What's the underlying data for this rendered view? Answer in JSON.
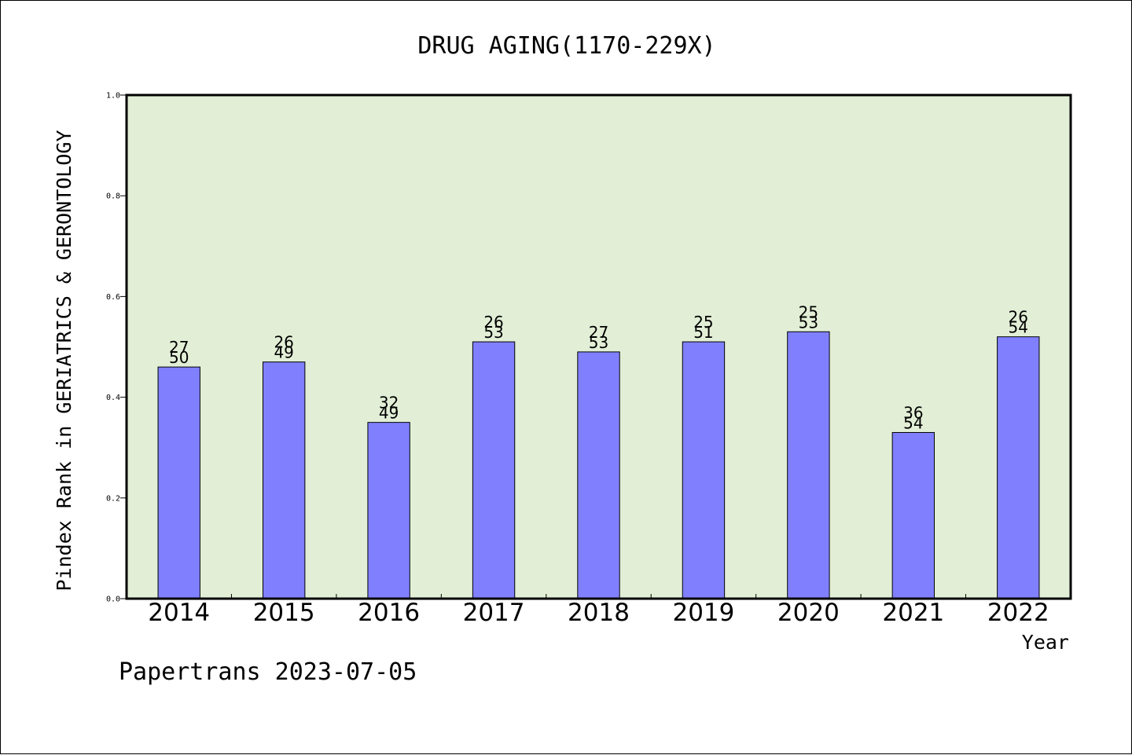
{
  "chart_data": {
    "type": "bar",
    "title": "DRUG AGING(1170-229X)",
    "xlabel": "Year",
    "ylabel": "Pindex Rank in GERIATRICS & GERONTOLOGY",
    "ylim": [
      0.0,
      1.0
    ],
    "yticks": [
      "0.0",
      "0.2",
      "0.4",
      "0.6",
      "0.8",
      "1.0"
    ],
    "grid": false,
    "categories": [
      "2014",
      "2015",
      "2016",
      "2017",
      "2018",
      "2019",
      "2020",
      "2021",
      "2022"
    ],
    "values": [
      0.46,
      0.47,
      0.35,
      0.51,
      0.49,
      0.51,
      0.53,
      0.33,
      0.52
    ],
    "rank_labels": [
      "27",
      "26",
      "32",
      "26",
      "27",
      "25",
      "25",
      "36",
      "26"
    ],
    "total_labels": [
      "50",
      "49",
      "49",
      "53",
      "53",
      "51",
      "53",
      "54",
      "54"
    ],
    "bar_color": "#8080ff",
    "plot_background": "#e2efd6"
  },
  "footer": {
    "text": "Papertrans 2023-07-05"
  }
}
